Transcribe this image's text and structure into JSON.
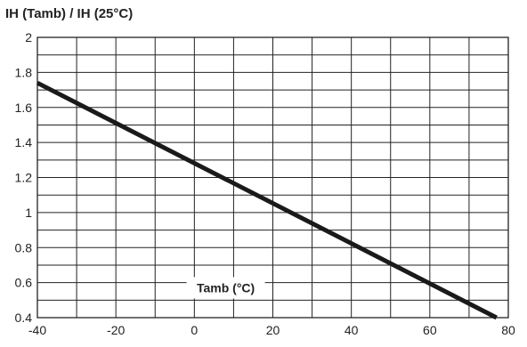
{
  "chart_data": {
    "type": "line",
    "ylabel": "IH (Tamb) / IH (25°C)",
    "xlabel": "Tamb (°C)",
    "xlim": [
      -40,
      80
    ],
    "ylim": [
      0.4,
      2.0
    ],
    "grid": true,
    "x_ticks": [
      "-40",
      "-20",
      "0",
      "20",
      "40",
      "60",
      "80"
    ],
    "y_ticks": [
      "2",
      "1.8",
      "1.6",
      "1.4",
      "1.2",
      "1",
      "0.8",
      "0.6",
      "0.4"
    ],
    "series": [
      {
        "x": [
          -40,
          77
        ],
        "y": [
          1.74,
          0.4
        ],
        "color": "#1a1a1a"
      }
    ]
  }
}
